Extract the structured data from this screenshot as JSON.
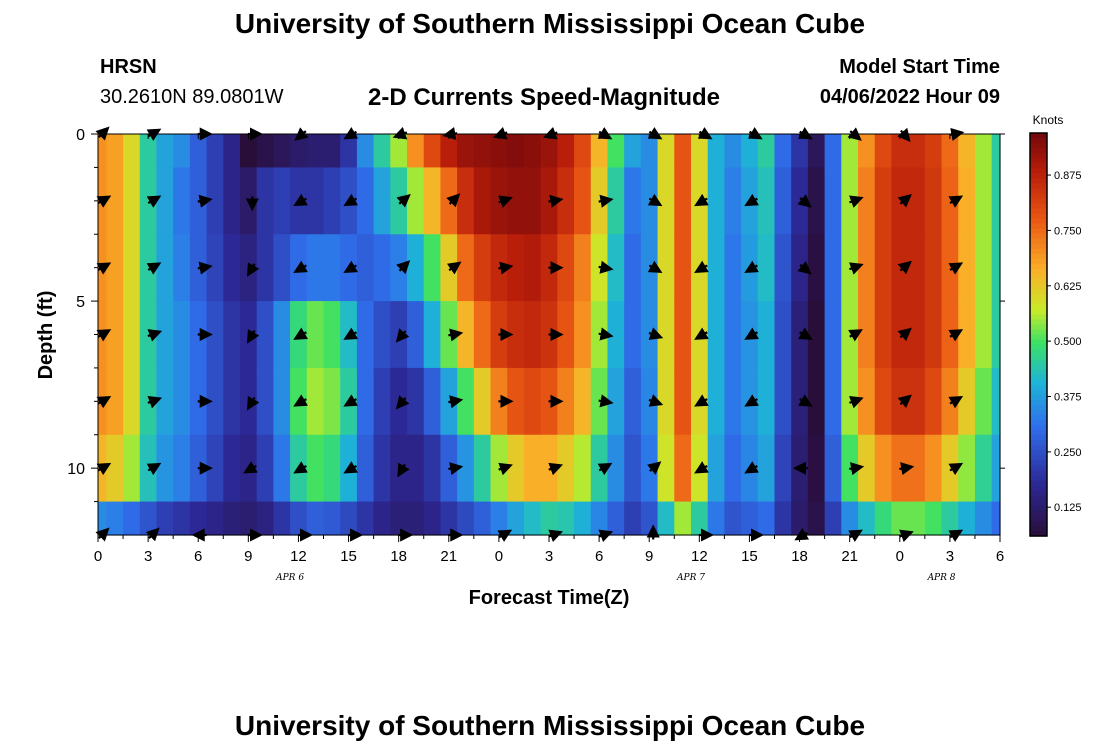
{
  "header": {
    "title": "University of Southern Mississippi Ocean Cube",
    "station": "HRSN",
    "coords": "30.2610N  89.0801W",
    "plot_title": "2-D Currents Speed-Magnitude",
    "start_label": "Model Start Time",
    "start_value": "04/06/2022 Hour 09"
  },
  "footer": {
    "title": "University of Southern Mississippi Ocean Cube"
  },
  "chart_data": {
    "type": "heatmap",
    "title": "2-D Currents Speed-Magnitude",
    "xlabel": "Forecast Time(Z)",
    "ylabel": "Depth (ft)",
    "x_tick_labels": [
      "0",
      "3",
      "6",
      "9",
      "12",
      "15",
      "18",
      "21",
      "0",
      "3",
      "6",
      "9",
      "12",
      "15",
      "18",
      "21",
      "0",
      "3",
      "6"
    ],
    "xlim": [
      0,
      54
    ],
    "ylim": [
      12,
      0
    ],
    "y_ticks": [
      0,
      5,
      10
    ],
    "date_labels": [
      {
        "label": "APR 6",
        "hour": 11.5
      },
      {
        "label": "APR 7",
        "hour": 35.5
      },
      {
        "label": "APR 8",
        "hour": 50.5
      }
    ],
    "colorbar": {
      "label": "Knots",
      "range": [
        0.06,
        0.97
      ],
      "ticks": [
        "0.875",
        "0.750",
        "0.625",
        "0.500",
        "0.375",
        "0.250",
        "0.125"
      ],
      "tick_values": [
        0.875,
        0.75,
        0.625,
        0.5,
        0.375,
        0.25,
        0.125
      ]
    },
    "hours": [
      0,
      1,
      2,
      3,
      4,
      5,
      6,
      7,
      8,
      9,
      10,
      11,
      12,
      13,
      14,
      15,
      16,
      17,
      18,
      19,
      20,
      21,
      22,
      23,
      24,
      25,
      26,
      27,
      28,
      29,
      30,
      31,
      32,
      33,
      34,
      35,
      36,
      37,
      38,
      39,
      40,
      41,
      42,
      43,
      44,
      45,
      46,
      47,
      48,
      49,
      50,
      51,
      52,
      53,
      54
    ],
    "depth_levels": [
      0,
      2,
      4,
      6,
      8,
      10,
      12
    ],
    "speed_knots": [
      [
        0.7,
        0.68,
        0.6,
        0.45,
        0.38,
        0.35,
        0.28,
        0.22,
        0.16,
        0.06,
        0.08,
        0.1,
        0.12,
        0.13,
        0.13,
        0.2,
        0.35,
        0.45,
        0.55,
        0.7,
        0.8,
        0.88,
        0.92,
        0.93,
        0.94,
        0.95,
        0.94,
        0.92,
        0.88,
        0.8,
        0.65,
        0.5,
        0.38,
        0.35,
        0.6,
        0.78,
        0.6,
        0.4,
        0.35,
        0.4,
        0.45,
        0.3,
        0.2,
        0.1,
        0.3,
        0.55,
        0.7,
        0.8,
        0.85,
        0.85,
        0.82,
        0.75,
        0.65,
        0.55,
        0.45
      ],
      [
        0.7,
        0.68,
        0.6,
        0.45,
        0.38,
        0.32,
        0.28,
        0.22,
        0.16,
        0.12,
        0.2,
        0.22,
        0.2,
        0.2,
        0.22,
        0.25,
        0.3,
        0.38,
        0.45,
        0.55,
        0.65,
        0.75,
        0.85,
        0.9,
        0.92,
        0.93,
        0.93,
        0.9,
        0.85,
        0.78,
        0.62,
        0.45,
        0.32,
        0.35,
        0.6,
        0.78,
        0.6,
        0.4,
        0.33,
        0.38,
        0.43,
        0.28,
        0.18,
        0.08,
        0.3,
        0.55,
        0.72,
        0.82,
        0.86,
        0.86,
        0.83,
        0.76,
        0.66,
        0.55,
        0.45
      ],
      [
        0.7,
        0.68,
        0.6,
        0.45,
        0.38,
        0.33,
        0.28,
        0.23,
        0.18,
        0.15,
        0.2,
        0.25,
        0.3,
        0.32,
        0.32,
        0.3,
        0.28,
        0.3,
        0.33,
        0.4,
        0.5,
        0.62,
        0.75,
        0.82,
        0.86,
        0.88,
        0.89,
        0.86,
        0.8,
        0.72,
        0.58,
        0.42,
        0.3,
        0.35,
        0.6,
        0.78,
        0.6,
        0.4,
        0.32,
        0.37,
        0.42,
        0.26,
        0.16,
        0.07,
        0.3,
        0.55,
        0.72,
        0.82,
        0.86,
        0.86,
        0.83,
        0.76,
        0.66,
        0.55,
        0.45
      ],
      [
        0.7,
        0.68,
        0.6,
        0.45,
        0.38,
        0.35,
        0.3,
        0.25,
        0.2,
        0.18,
        0.25,
        0.35,
        0.48,
        0.52,
        0.5,
        0.42,
        0.3,
        0.25,
        0.22,
        0.28,
        0.4,
        0.52,
        0.65,
        0.75,
        0.82,
        0.85,
        0.86,
        0.84,
        0.78,
        0.7,
        0.55,
        0.4,
        0.3,
        0.35,
        0.6,
        0.78,
        0.6,
        0.4,
        0.32,
        0.36,
        0.4,
        0.25,
        0.14,
        0.06,
        0.3,
        0.55,
        0.72,
        0.82,
        0.86,
        0.86,
        0.83,
        0.76,
        0.66,
        0.55,
        0.45
      ],
      [
        0.7,
        0.68,
        0.6,
        0.45,
        0.38,
        0.35,
        0.3,
        0.25,
        0.2,
        0.18,
        0.25,
        0.35,
        0.5,
        0.55,
        0.53,
        0.45,
        0.3,
        0.22,
        0.18,
        0.2,
        0.28,
        0.38,
        0.5,
        0.62,
        0.72,
        0.78,
        0.8,
        0.78,
        0.72,
        0.65,
        0.52,
        0.38,
        0.28,
        0.34,
        0.6,
        0.78,
        0.6,
        0.4,
        0.32,
        0.36,
        0.4,
        0.25,
        0.14,
        0.06,
        0.3,
        0.55,
        0.7,
        0.8,
        0.84,
        0.84,
        0.8,
        0.72,
        0.62,
        0.52,
        0.42
      ],
      [
        0.65,
        0.62,
        0.55,
        0.43,
        0.36,
        0.33,
        0.28,
        0.23,
        0.18,
        0.16,
        0.22,
        0.32,
        0.45,
        0.5,
        0.48,
        0.4,
        0.28,
        0.2,
        0.16,
        0.16,
        0.2,
        0.28,
        0.36,
        0.45,
        0.55,
        0.62,
        0.66,
        0.66,
        0.62,
        0.56,
        0.45,
        0.35,
        0.26,
        0.32,
        0.58,
        0.75,
        0.58,
        0.38,
        0.3,
        0.34,
        0.38,
        0.23,
        0.13,
        0.07,
        0.28,
        0.5,
        0.62,
        0.7,
        0.74,
        0.74,
        0.7,
        0.62,
        0.54,
        0.46,
        0.38
      ],
      [
        0.35,
        0.33,
        0.3,
        0.26,
        0.22,
        0.2,
        0.18,
        0.16,
        0.14,
        0.13,
        0.15,
        0.2,
        0.25,
        0.28,
        0.27,
        0.24,
        0.2,
        0.16,
        0.14,
        0.14,
        0.16,
        0.2,
        0.24,
        0.28,
        0.33,
        0.38,
        0.42,
        0.45,
        0.44,
        0.4,
        0.34,
        0.28,
        0.22,
        0.26,
        0.42,
        0.55,
        0.45,
        0.32,
        0.26,
        0.28,
        0.3,
        0.2,
        0.12,
        0.08,
        0.22,
        0.35,
        0.42,
        0.48,
        0.52,
        0.52,
        0.5,
        0.45,
        0.4,
        0.35,
        0.3
      ]
    ],
    "vector_hours": [
      0,
      3,
      6,
      9,
      12,
      15,
      18,
      21,
      24,
      27,
      30,
      33,
      36,
      39,
      42,
      45,
      48,
      51
    ],
    "vector_depths": [
      0,
      2,
      4,
      6,
      8,
      10,
      12
    ],
    "vector_directions_deg": [
      [
        45,
        60,
        90,
        90,
        230,
        240,
        250,
        260,
        250,
        250,
        120,
        120,
        120,
        120,
        120,
        130,
        140,
        80
      ],
      [
        60,
        60,
        80,
        180,
        240,
        240,
        50,
        45,
        70,
        80,
        80,
        120,
        240,
        240,
        130,
        70,
        50,
        60
      ],
      [
        60,
        60,
        80,
        210,
        240,
        240,
        45,
        55,
        80,
        90,
        100,
        120,
        240,
        240,
        130,
        70,
        50,
        60
      ],
      [
        60,
        70,
        90,
        210,
        240,
        240,
        220,
        80,
        90,
        90,
        100,
        110,
        240,
        240,
        120,
        60,
        50,
        60
      ],
      [
        60,
        70,
        90,
        210,
        240,
        240,
        220,
        80,
        90,
        90,
        100,
        110,
        240,
        240,
        120,
        70,
        50,
        60
      ],
      [
        60,
        60,
        90,
        240,
        240,
        240,
        210,
        80,
        70,
        70,
        60,
        50,
        240,
        240,
        270,
        80,
        80,
        60
      ],
      [
        45,
        45,
        270,
        90,
        90,
        90,
        90,
        90,
        60,
        70,
        70,
        0,
        90,
        90,
        240,
        60,
        70,
        60
      ]
    ]
  }
}
